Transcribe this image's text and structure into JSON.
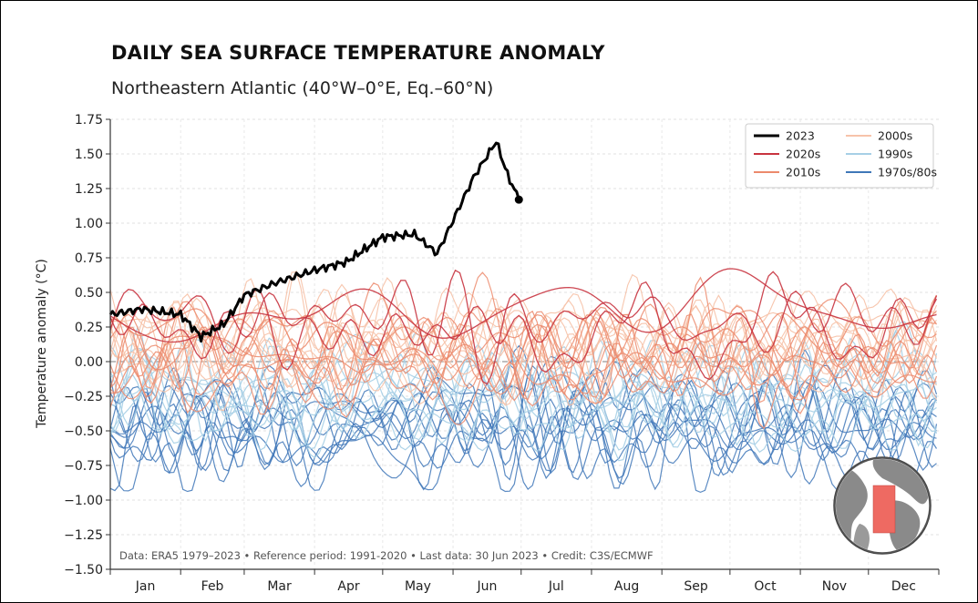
{
  "chart_data": {
    "type": "line",
    "title": "DAILY SEA SURFACE TEMPERATURE ANOMALY",
    "subtitle": "Northeastern Atlantic (40°W–0°E, Eq.–60°N)",
    "xlabel": "",
    "ylabel": "Temperature anomaly (°C)",
    "ylim": [
      -1.5,
      1.75
    ],
    "yticks": [
      "1.75",
      "1.50",
      "1.25",
      "1.00",
      "0.75",
      "0.50",
      "0.25",
      "0.00",
      "−0.25",
      "−0.50",
      "−0.75",
      "−1.00",
      "−1.25",
      "−1.50"
    ],
    "ytick_values": [
      1.75,
      1.5,
      1.25,
      1.0,
      0.75,
      0.5,
      0.25,
      0.0,
      -0.25,
      -0.5,
      -0.75,
      -1.0,
      -1.25,
      -1.5
    ],
    "months": [
      "Jan",
      "Feb",
      "Mar",
      "Apr",
      "May",
      "Jun",
      "Jul",
      "Aug",
      "Sep",
      "Oct",
      "Nov",
      "Dec"
    ],
    "grid": true,
    "legend_position": "top-right",
    "legend": [
      {
        "label": "2023",
        "color": "#000000"
      },
      {
        "label": "2000s",
        "color": "#f7c3aa"
      },
      {
        "label": "2020s",
        "color": "#c8333f"
      },
      {
        "label": "1990s",
        "color": "#a6cfe6"
      },
      {
        "label": "2010s",
        "color": "#ec8a6c"
      },
      {
        "label": "1970s/80s",
        "color": "#3f77b8"
      }
    ],
    "series_2023": {
      "name": "2023",
      "x": [
        "Jan 1",
        "Jan 15",
        "Feb 1",
        "Feb 10",
        "Feb 20",
        "Mar 1",
        "Mar 15",
        "Apr 1",
        "Apr 15",
        "May 1",
        "May 15",
        "May 25",
        "Jun 1",
        "Jun 10",
        "Jun 20",
        "Jun 25",
        "Jun 30"
      ],
      "values": [
        0.34,
        0.38,
        0.34,
        0.18,
        0.27,
        0.48,
        0.57,
        0.66,
        0.72,
        0.9,
        0.92,
        0.78,
        1.02,
        1.33,
        1.59,
        1.35,
        1.17
      ]
    },
    "footer": "Data: ERA5 1979–2023 • Reference period: 1991-2020 • Last data: 30 Jun 2023 • Credit: C3S/ECMWF"
  },
  "colors": {
    "c2023": "#000000",
    "c2020s": "#c8333f",
    "c2010s": "#ec8a6c",
    "c2000s": "#f7c3aa",
    "c1990s": "#a6cfe6",
    "c1970s80s": "#3f77b8",
    "map_region": "#ee6a62"
  },
  "icons": {
    "globe": "globe-map-icon"
  }
}
